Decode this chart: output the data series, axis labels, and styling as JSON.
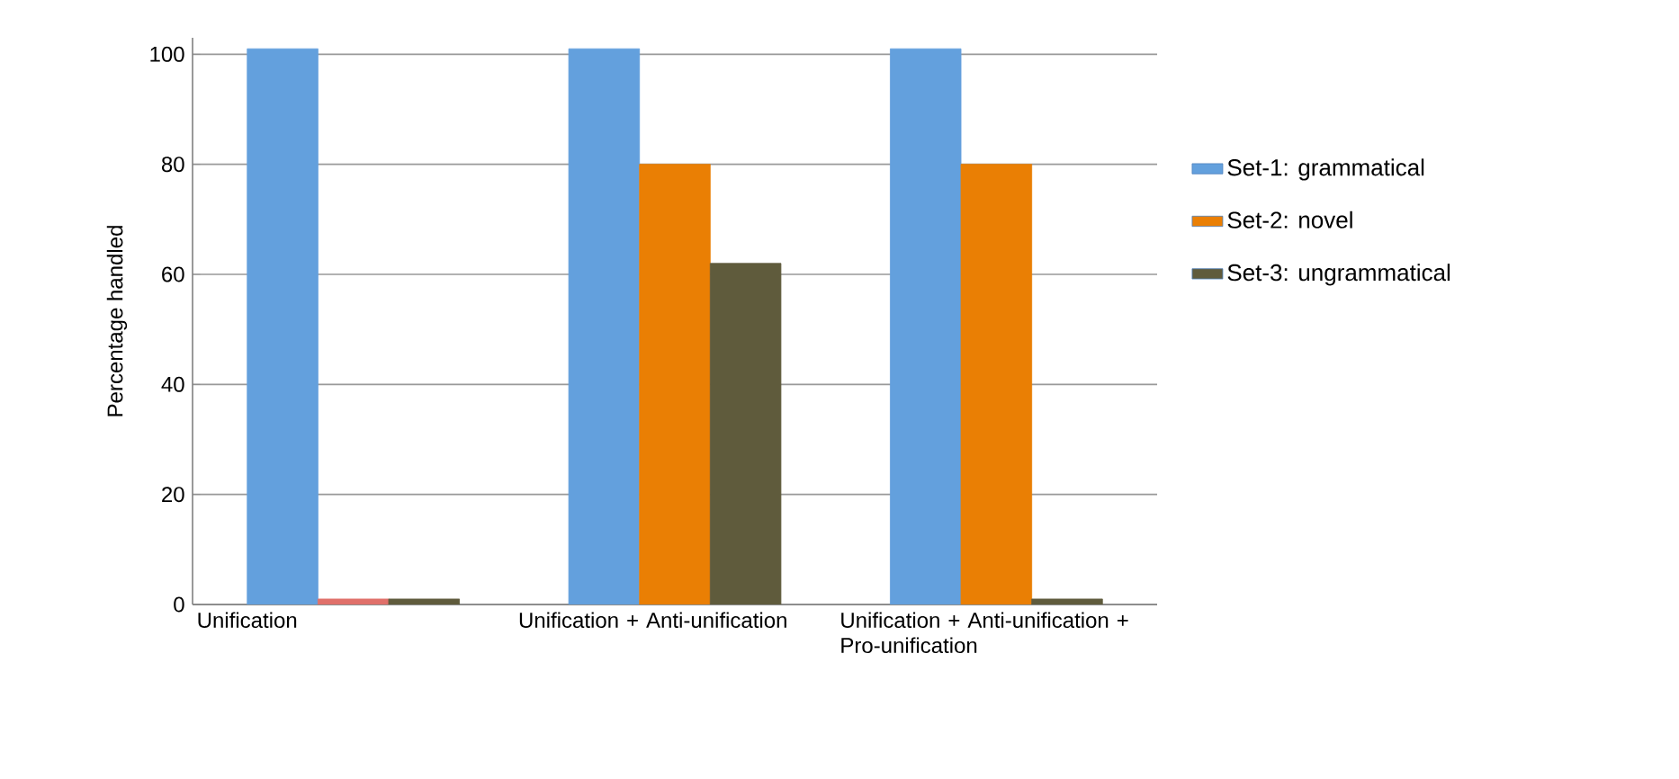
{
  "chart_data": {
    "type": "bar",
    "ylabel": "Percentage handled",
    "categories": [
      "Unification",
      "Unification + Anti-unification",
      "Unification + Anti-unification + Pro-unification"
    ],
    "series": [
      {
        "name": "Set-1: grammatical",
        "color": "#63a0dd",
        "values": [
          101,
          101,
          101
        ]
      },
      {
        "name": "Set-2: novel",
        "color": "#ea7f04",
        "colors": [
          "#e0706a",
          "#ea7f04",
          "#ea7f04"
        ],
        "values": [
          1,
          80,
          80
        ]
      },
      {
        "name": "Set-3: ungrammatical",
        "color": "#5f5b3c",
        "values": [
          1,
          62,
          1
        ]
      }
    ],
    "ylim": [
      0,
      103
    ],
    "yticks": [
      0,
      20,
      40,
      60,
      80,
      100
    ],
    "grid": "y",
    "legend": "right"
  }
}
